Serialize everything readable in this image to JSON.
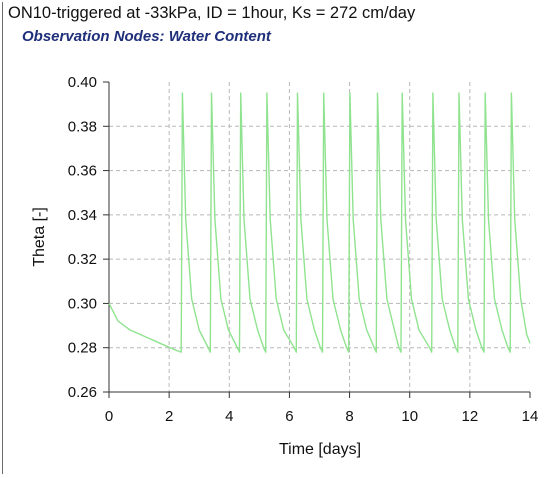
{
  "window": {
    "title": "ON10-triggered at -33kPa, ID = 1hour, Ks = 272 cm/day"
  },
  "chart_data": {
    "type": "line",
    "title": "Observation Nodes: Water Content",
    "xlabel": "Time [days]",
    "ylabel": "Theta [-]",
    "xlim": [
      0,
      14
    ],
    "ylim": [
      0.26,
      0.4
    ],
    "x_ticks": [
      "0",
      "2",
      "4",
      "6",
      "8",
      "10",
      "12",
      "14"
    ],
    "y_ticks": [
      "0.26",
      "0.28",
      "0.30",
      "0.32",
      "0.34",
      "0.36",
      "0.38",
      "0.40"
    ],
    "grid": true,
    "legend": "none",
    "line_color": "#8fe38f",
    "description": "Water content at the observation node: starts near 0.30 and decays toward ~0.278, then a sawtooth of sharp irrigation spikes to ~0.395 each followed by rapid decay back to ~0.278.",
    "series": [
      {
        "points": [
          [
            0.0,
            0.3
          ],
          [
            0.3,
            0.292
          ],
          [
            0.7,
            0.288
          ],
          [
            1.2,
            0.285
          ],
          [
            1.7,
            0.282
          ],
          [
            2.2,
            0.279
          ],
          [
            2.4,
            0.278
          ],
          [
            2.44,
            0.395
          ],
          [
            2.55,
            0.338
          ],
          [
            2.75,
            0.302
          ],
          [
            3.0,
            0.288
          ],
          [
            3.3,
            0.28
          ],
          [
            3.37,
            0.278
          ],
          [
            3.41,
            0.395
          ],
          [
            3.52,
            0.338
          ],
          [
            3.72,
            0.302
          ],
          [
            3.97,
            0.288
          ],
          [
            4.27,
            0.28
          ],
          [
            4.34,
            0.278
          ],
          [
            4.38,
            0.395
          ],
          [
            4.49,
            0.338
          ],
          [
            4.69,
            0.302
          ],
          [
            4.94,
            0.288
          ],
          [
            5.14,
            0.28
          ],
          [
            5.21,
            0.278
          ],
          [
            5.25,
            0.395
          ],
          [
            5.36,
            0.338
          ],
          [
            5.56,
            0.302
          ],
          [
            5.81,
            0.288
          ],
          [
            6.16,
            0.28
          ],
          [
            6.23,
            0.278
          ],
          [
            6.27,
            0.395
          ],
          [
            6.38,
            0.338
          ],
          [
            6.58,
            0.302
          ],
          [
            6.83,
            0.288
          ],
          [
            7.03,
            0.28
          ],
          [
            7.1,
            0.278
          ],
          [
            7.14,
            0.395
          ],
          [
            7.25,
            0.338
          ],
          [
            7.45,
            0.302
          ],
          [
            7.7,
            0.288
          ],
          [
            7.9,
            0.28
          ],
          [
            7.97,
            0.278
          ],
          [
            8.01,
            0.395
          ],
          [
            8.12,
            0.338
          ],
          [
            8.32,
            0.302
          ],
          [
            8.57,
            0.288
          ],
          [
            8.82,
            0.28
          ],
          [
            8.89,
            0.278
          ],
          [
            8.93,
            0.395
          ],
          [
            9.04,
            0.338
          ],
          [
            9.24,
            0.302
          ],
          [
            9.49,
            0.288
          ],
          [
            9.64,
            0.28
          ],
          [
            9.71,
            0.278
          ],
          [
            9.75,
            0.395
          ],
          [
            9.86,
            0.338
          ],
          [
            10.06,
            0.302
          ],
          [
            10.31,
            0.288
          ],
          [
            10.66,
            0.28
          ],
          [
            10.73,
            0.278
          ],
          [
            10.77,
            0.395
          ],
          [
            10.88,
            0.338
          ],
          [
            11.08,
            0.302
          ],
          [
            11.33,
            0.288
          ],
          [
            11.53,
            0.28
          ],
          [
            11.6,
            0.278
          ],
          [
            11.64,
            0.395
          ],
          [
            11.75,
            0.338
          ],
          [
            11.95,
            0.302
          ],
          [
            12.2,
            0.288
          ],
          [
            12.4,
            0.28
          ],
          [
            12.47,
            0.278
          ],
          [
            12.51,
            0.395
          ],
          [
            12.62,
            0.338
          ],
          [
            12.82,
            0.302
          ],
          [
            13.07,
            0.288
          ],
          [
            13.27,
            0.28
          ],
          [
            13.34,
            0.278
          ],
          [
            13.38,
            0.395
          ],
          [
            13.49,
            0.338
          ],
          [
            13.69,
            0.302
          ],
          [
            13.89,
            0.286
          ],
          [
            14.0,
            0.282
          ]
        ]
      }
    ]
  }
}
